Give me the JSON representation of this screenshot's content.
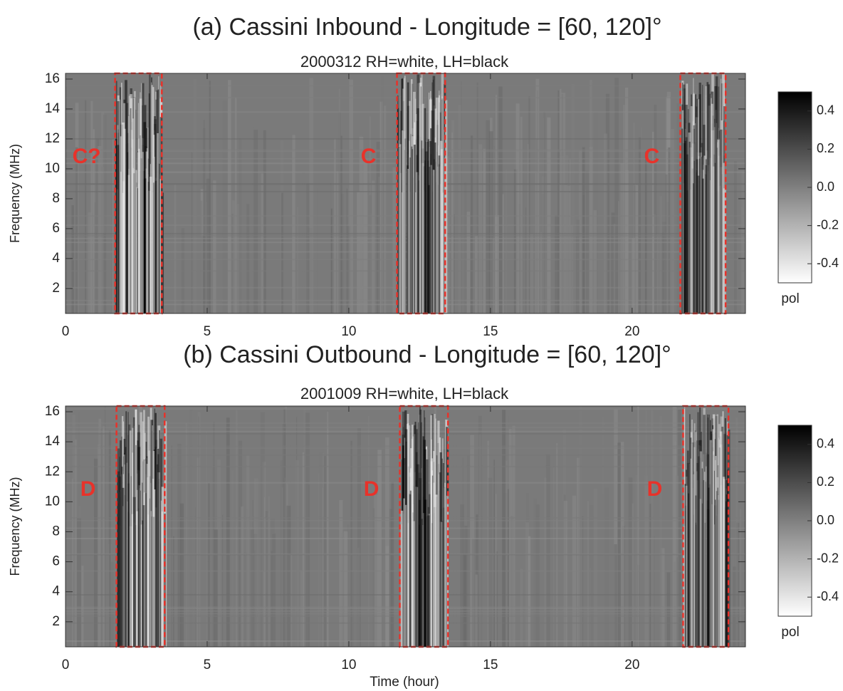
{
  "chart_data": [
    {
      "type": "spectrogram",
      "title": "(a)  Cassini Inbound - Longitude = [60, 120]°",
      "subtitle": "2000312   RH=white, LH=black",
      "ylabel": "Frequency (MHz)",
      "xlim": [
        0,
        24
      ],
      "xticks": [
        0,
        5,
        10,
        15,
        20
      ],
      "ylim": [
        0.33,
        16.38
      ],
      "yticks": [
        2,
        4,
        6,
        8,
        10,
        12,
        14,
        16
      ],
      "colorbar": {
        "label": "pol",
        "clim": [
          -0.5,
          0.5
        ],
        "ticks": [
          0.4,
          0.2,
          {
            "value": 0,
            "label": "0.0"
          },
          -0.2,
          -0.4
        ]
      },
      "annotations": [
        {
          "label": "C?",
          "x": [
            1.75,
            3.4
          ],
          "color": "#e8322a"
        },
        {
          "label": "C",
          "x": [
            11.7,
            13.4
          ],
          "color": "#e8322a"
        },
        {
          "label": "C",
          "x": [
            21.7,
            23.3
          ],
          "color": "#e8322a"
        }
      ]
    },
    {
      "type": "spectrogram",
      "title": "(b)  Cassini Outbound - Longitude = [60, 120]°",
      "subtitle": "2001009   RH=white, LH=black",
      "ylabel": "Frequency (MHz)",
      "xlabel": "Time (hour)",
      "xlim": [
        0,
        24
      ],
      "xticks": [
        0,
        5,
        10,
        15,
        20
      ],
      "ylim": [
        0.33,
        16.38
      ],
      "yticks": [
        2,
        4,
        6,
        8,
        10,
        12,
        14,
        16
      ],
      "colorbar": {
        "label": "pol",
        "clim": [
          -0.5,
          0.5
        ],
        "ticks": [
          0.4,
          0.2,
          {
            "value": 0,
            "label": "0.0"
          },
          -0.2,
          -0.4
        ]
      },
      "annotations": [
        {
          "label": "D",
          "x": [
            1.8,
            3.5
          ],
          "color": "#e8322a"
        },
        {
          "label": "D",
          "x": [
            11.8,
            13.5
          ],
          "color": "#e8322a"
        },
        {
          "label": "D",
          "x": [
            21.8,
            23.4
          ],
          "color": "#e8322a"
        }
      ]
    }
  ]
}
